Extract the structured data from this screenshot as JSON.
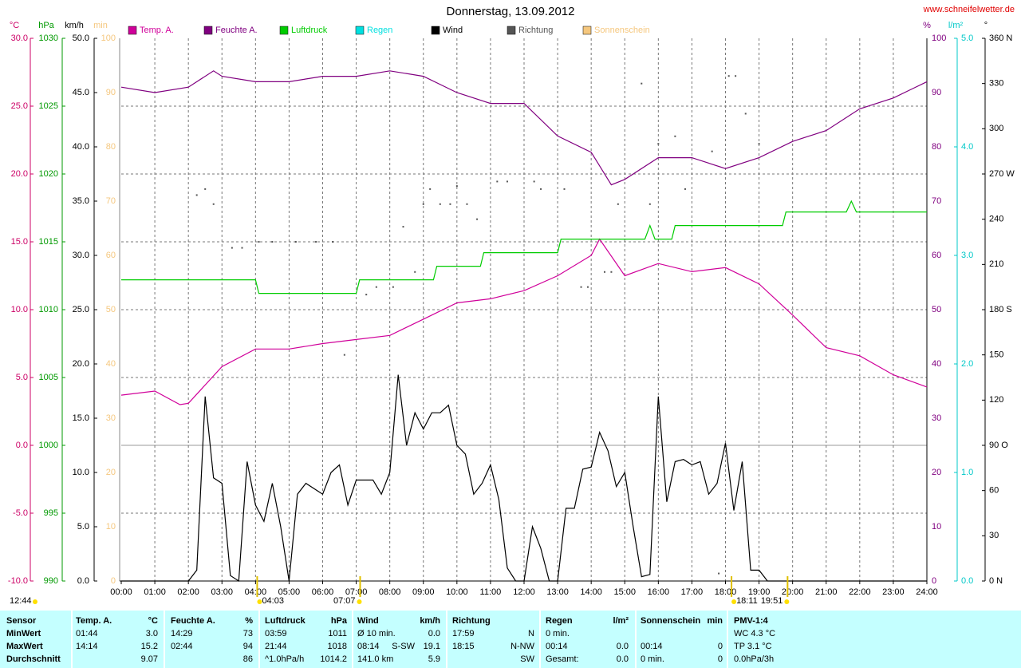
{
  "chart_data": {
    "type": "line",
    "title": "Donnerstag, 13.09.2012",
    "source": "www.schneifelwetter.de",
    "xlim": [
      0,
      24
    ],
    "xticks": [
      {
        "value": 0,
        "label": "00:00"
      },
      {
        "value": 1,
        "label": "01:00"
      },
      {
        "value": 2,
        "label": "02:00"
      },
      {
        "value": 3,
        "label": "03:00"
      },
      {
        "value": 4,
        "label": "04:00"
      },
      {
        "value": 5,
        "label": "05:00"
      },
      {
        "value": 6,
        "label": "06:00"
      },
      {
        "value": 7,
        "label": "07:00"
      },
      {
        "value": 8,
        "label": "08:00"
      },
      {
        "value": 9,
        "label": "09:00"
      },
      {
        "value": 10,
        "label": "10:00"
      },
      {
        "value": 11,
        "label": "11:00"
      },
      {
        "value": 12,
        "label": "12:00"
      },
      {
        "value": 13,
        "label": "13:00"
      },
      {
        "value": 14,
        "label": "14:00"
      },
      {
        "value": 15,
        "label": "15:00"
      },
      {
        "value": 16,
        "label": "16:00"
      },
      {
        "value": 17,
        "label": "17:00"
      },
      {
        "value": 18,
        "label": "18:00"
      },
      {
        "value": 19,
        "label": "19:00"
      },
      {
        "value": 20,
        "label": "20:00"
      },
      {
        "value": 21,
        "label": "21:00"
      },
      {
        "value": 22,
        "label": "22:00"
      },
      {
        "value": 23,
        "label": "23:00"
      },
      {
        "value": 24,
        "label": "24:00"
      }
    ],
    "grid": true,
    "axes": [
      {
        "label": "°C",
        "color": "#cc0066",
        "lim": [
          -10,
          30
        ],
        "ticks": [
          {
            "value": -10,
            "label": "-10.0"
          },
          {
            "value": -5,
            "label": "-5.0"
          },
          {
            "value": 0,
            "label": "0.0"
          },
          {
            "value": 5,
            "label": "5.0"
          },
          {
            "value": 10,
            "label": "10.0"
          },
          {
            "value": 15,
            "label": "15.0"
          },
          {
            "value": 20,
            "label": "20.0"
          },
          {
            "value": 25,
            "label": "25.0"
          },
          {
            "value": 30,
            "label": "30.0"
          }
        ]
      },
      {
        "label": "hPa",
        "color": "#009900",
        "lim": [
          990,
          1030
        ],
        "ticks": [
          990,
          995,
          1000,
          1005,
          1010,
          1015,
          1020,
          1025,
          1030
        ]
      },
      {
        "label": "km/h",
        "color": "#000000",
        "lim": [
          0,
          50
        ],
        "ticks": [
          {
            "value": 0,
            "label": "0.0"
          },
          {
            "value": 5,
            "label": "5.0"
          },
          {
            "value": 10,
            "label": "10.0"
          },
          {
            "value": 15,
            "label": "15.0"
          },
          {
            "value": 20,
            "label": "20.0"
          },
          {
            "value": 25,
            "label": "25.0"
          },
          {
            "value": 30,
            "label": "30.0"
          },
          {
            "value": 35,
            "label": "35.0"
          },
          {
            "value": 40,
            "label": "40.0"
          },
          {
            "value": 45,
            "label": "45.0"
          },
          {
            "value": 50,
            "label": "50.0"
          }
        ]
      },
      {
        "label": "min",
        "color": "#f5c77e",
        "lim": [
          0,
          100
        ],
        "ticks": [
          0,
          10,
          20,
          30,
          40,
          50,
          60,
          70,
          80,
          90,
          100
        ]
      },
      {
        "label": "%",
        "color": "#800080",
        "lim": [
          0,
          100
        ],
        "ticks": [
          0,
          10,
          20,
          30,
          40,
          50,
          60,
          70,
          80,
          90,
          100
        ]
      },
      {
        "label": "l/m²",
        "color": "#00c8c8",
        "lim": [
          0,
          5
        ],
        "ticks": [
          {
            "value": 0,
            "label": "0.0"
          },
          {
            "value": 1,
            "label": "1.0"
          },
          {
            "value": 2,
            "label": "2.0"
          },
          {
            "value": 3,
            "label": "3.0"
          },
          {
            "value": 4,
            "label": "4.0"
          },
          {
            "value": 5,
            "label": "5.0"
          }
        ]
      },
      {
        "label": "°",
        "color": "#000000",
        "lim": [
          0,
          360
        ],
        "ticks": [
          {
            "value": 0,
            "label": "0 N"
          },
          30,
          60,
          {
            "value": 90,
            "label": "90 O"
          },
          120,
          150,
          {
            "value": 180,
            "label": "180 S"
          },
          210,
          240,
          {
            "value": 270,
            "label": "270 W"
          },
          300,
          330,
          {
            "value": 360,
            "label": "360 N"
          }
        ]
      }
    ],
    "series": [
      {
        "name": "Temp. A.",
        "color": "#d0009a",
        "axis": 0,
        "type": "line",
        "x": [
          0,
          1,
          1.75,
          2,
          3,
          4,
          5,
          6,
          7,
          8,
          9,
          10,
          11,
          12,
          13,
          14,
          14.25,
          15,
          16,
          17,
          18,
          19,
          20,
          21,
          22,
          23,
          24
        ],
        "values": [
          3.7,
          4.0,
          3.0,
          3.1,
          5.8,
          7.1,
          7.1,
          7.5,
          7.8,
          8.1,
          9.3,
          10.5,
          10.8,
          11.4,
          12.5,
          14.0,
          15.2,
          12.5,
          13.4,
          12.8,
          13.1,
          11.9,
          9.6,
          7.2,
          6.6,
          5.2,
          4.3
        ]
      },
      {
        "name": "Feuchte A.",
        "color": "#800080",
        "axis": 4,
        "type": "line",
        "x": [
          0,
          1,
          2,
          2.75,
          3,
          4,
          5,
          6,
          7,
          8,
          9,
          10,
          11,
          12,
          13,
          14,
          14.6,
          15,
          16,
          17,
          18,
          19,
          20,
          21,
          22,
          23,
          24
        ],
        "values": [
          91,
          90,
          91,
          94,
          93,
          92,
          92,
          93,
          93,
          94,
          93,
          90,
          88,
          88,
          82,
          79,
          73,
          74,
          78,
          78,
          76,
          78,
          81,
          83,
          87,
          89,
          92
        ]
      },
      {
        "name": "Luftdruck",
        "color": "#00cc00",
        "axis": 1,
        "type": "line",
        "x": [
          0,
          4,
          4.1,
          7,
          7.1,
          9.3,
          9.4,
          10.7,
          10.8,
          13,
          13.1,
          15.6,
          15.75,
          15.9,
          16.4,
          16.5,
          19.7,
          19.8,
          21.6,
          21.75,
          21.9,
          24
        ],
        "values": [
          1012.2,
          1012.2,
          1011.2,
          1011.2,
          1012.2,
          1012.2,
          1013.2,
          1013.2,
          1014.2,
          1014.2,
          1015.2,
          1015.2,
          1016.2,
          1015.2,
          1015.2,
          1016.2,
          1016.2,
          1017.2,
          1017.2,
          1018,
          1017.2,
          1017.2
        ]
      },
      {
        "name": "Regen",
        "color": "#00e0e0",
        "axis": 5,
        "type": "line"
      },
      {
        "name": "Wind",
        "color": "#000000",
        "axis": 2,
        "type": "line",
        "x": [
          0,
          1,
          2,
          2.25,
          2.5,
          2.75,
          3,
          3.25,
          3.5,
          3.75,
          4,
          4.25,
          4.5,
          4.75,
          5,
          5.25,
          5.5,
          6,
          6.25,
          6.5,
          6.75,
          7,
          7.5,
          7.75,
          8,
          8.25,
          8.5,
          8.75,
          9,
          9.25,
          9.5,
          9.75,
          10,
          10.25,
          10.5,
          10.75,
          11,
          11.25,
          11.5,
          11.75,
          12,
          12.25,
          12.5,
          12.75,
          13,
          13.25,
          13.5,
          13.75,
          14,
          14.25,
          14.5,
          14.75,
          15,
          15.25,
          15.5,
          15.75,
          16,
          16.25,
          16.5,
          16.75,
          17,
          17.25,
          17.5,
          17.75,
          18,
          18.25,
          18.5,
          18.75,
          19,
          19.25,
          24
        ],
        "values": [
          0,
          0,
          0,
          1,
          17,
          9.5,
          9,
          0.5,
          0,
          11,
          7,
          5.5,
          9,
          5,
          0,
          8,
          9,
          8,
          10,
          10.7,
          7,
          9.3,
          9.3,
          8,
          10,
          19,
          12.5,
          15.5,
          14,
          15.5,
          15.5,
          16.2,
          12.5,
          11.7,
          8,
          9,
          10.7,
          7.5,
          1.2,
          0,
          0,
          5,
          3,
          0,
          0,
          6.7,
          6.7,
          10.3,
          10.5,
          13.7,
          12,
          8.7,
          10,
          5,
          0.4,
          0.6,
          17,
          7.3,
          11,
          11.2,
          10.7,
          11,
          8,
          9,
          12.7,
          6.5,
          11,
          1,
          1,
          0,
          0
        ]
      },
      {
        "name": "Richtung",
        "color": "#555555",
        "axis": 6,
        "type": "scatter",
        "x": [
          2.25,
          2.5,
          2.75,
          3.3,
          3.6,
          4.1,
          4.5,
          5.2,
          5.8,
          6.3,
          6.65,
          7.3,
          7.6,
          8.1,
          8.4,
          8.75,
          9.0,
          9.2,
          9.5,
          9.8,
          10.0,
          10.3,
          10.6,
          11.2,
          11.5,
          12.3,
          12.5,
          13.2,
          13.7,
          13.9,
          14.4,
          14.6,
          14.8,
          15.5,
          15.75,
          16.0,
          16.5,
          16.8,
          17.6,
          18.1,
          18.3,
          18.6,
          19.0,
          17.8
        ],
        "values": [
          256,
          260,
          250,
          221,
          221,
          225,
          225,
          225,
          225,
          225,
          150,
          190,
          195,
          195,
          235,
          205,
          250,
          260,
          250,
          250,
          262,
          250,
          240,
          265,
          265,
          265,
          260,
          260,
          195,
          195,
          205,
          205,
          250,
          330,
          250,
          290,
          295,
          260,
          285,
          335,
          335,
          310,
          290,
          5
        ]
      },
      {
        "name": "Sonnenschein",
        "color": "#f5c77e",
        "axis": 3,
        "type": "line"
      }
    ],
    "daylength": "12:44",
    "annotations": [
      {
        "text": "04:03",
        "x": 4.05
      },
      {
        "text": "07:07",
        "x": 7.117
      },
      {
        "text": "18:11",
        "x": 18.18
      },
      {
        "text": "19:51",
        "x": 19.85
      }
    ]
  },
  "table": {
    "header": [
      {
        "l": "Sensor"
      },
      {
        "l": "Temp. A.",
        "r": "°C"
      },
      {
        "l": "Feuchte A.",
        "r": "%"
      },
      {
        "l": "Luftdruck",
        "r": "hPa"
      },
      {
        "l": "Wind",
        "r": "km/h"
      },
      {
        "l": "Richtung"
      },
      {
        "l": "Regen",
        "r": "l/m²"
      },
      {
        "l": "Sonnenschein",
        "r": "min"
      },
      {
        "l": "PMV-1:4"
      }
    ],
    "rows": [
      [
        {
          "l": "MinWert"
        },
        {
          "l": "01:44",
          "r": "3.0"
        },
        {
          "l": "14:29",
          "r": "73"
        },
        {
          "l": "03:59",
          "r": "1011"
        },
        {
          "l": "Ø 10 min.",
          "r": "0.0"
        },
        {
          "l": "17:59",
          "r": "N"
        },
        {
          "l": "0 min."
        },
        {},
        {
          "l": "WC 4.3 °C"
        }
      ],
      [
        {
          "l": "MaxWert"
        },
        {
          "l": "14:14",
          "r": "15.2"
        },
        {
          "l": "02:44",
          "r": "94"
        },
        {
          "l": "21:44",
          "r": "1018"
        },
        {
          "l": "08:14",
          "m": "S-SW",
          "r": "19.1"
        },
        {
          "l": "18:15",
          "r": "N-NW"
        },
        {
          "l": "00:14",
          "r": "0.0"
        },
        {
          "l": "00:14",
          "r": "0"
        },
        {
          "l": "TP 3.1 °C"
        }
      ],
      [
        {
          "l": "Durchschnitt"
        },
        {
          "r": "9.07"
        },
        {
          "r": "86"
        },
        {
          "l": "^1.0hPa/h",
          "r": "1014.2"
        },
        {
          "l": "141.0 km",
          "r": "5.9"
        },
        {
          "r": "SW"
        },
        {
          "l": "Gesamt:",
          "r": "0.0"
        },
        {
          "l": "0 min.",
          "r": "0"
        },
        {
          "l": "0.0hPa/3h"
        }
      ]
    ]
  }
}
